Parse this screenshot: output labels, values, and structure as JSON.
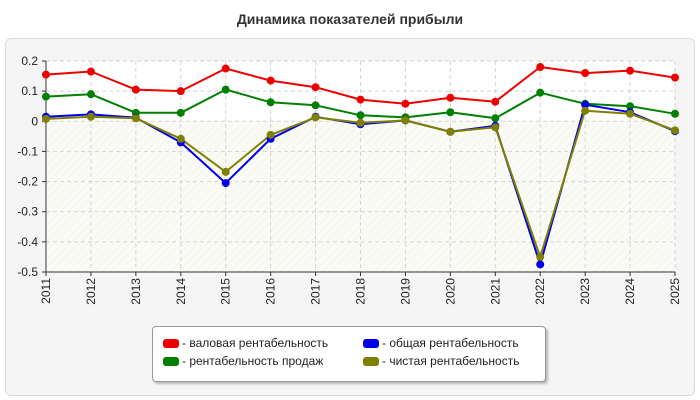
{
  "chart_data": {
    "type": "line",
    "title": "Динамика показателей прибыли",
    "xlabel": "",
    "ylabel": "",
    "x": [
      "2011",
      "2012",
      "2013",
      "2014",
      "2015",
      "2016",
      "2017",
      "2018",
      "2019",
      "2020",
      "2021",
      "2022",
      "2023",
      "2024",
      "2025"
    ],
    "ylim": [
      -0.5,
      0.2
    ],
    "yticks": [
      0.2,
      0.1,
      0,
      -0.1,
      -0.2,
      -0.3,
      -0.4,
      -0.5
    ],
    "ytick_labels": [
      "0.2",
      "0.1",
      "0",
      "-0.1",
      "-0.2",
      "-0.3",
      "-0.4",
      "-0.5"
    ],
    "grid": true,
    "legend_position": "bottom-center",
    "series": [
      {
        "name": "- валовая рентабельность",
        "color": "#ee0000",
        "values": [
          0.155,
          0.165,
          0.105,
          0.1,
          0.175,
          0.135,
          0.113,
          0.072,
          0.058,
          0.078,
          0.065,
          0.18,
          0.16,
          0.168,
          0.145
        ]
      },
      {
        "name": "- рентабельность продаж",
        "color": "#008000",
        "values": [
          0.082,
          0.09,
          0.028,
          0.028,
          0.105,
          0.063,
          0.053,
          0.02,
          0.013,
          0.03,
          0.01,
          0.095,
          0.058,
          0.05,
          0.025
        ]
      },
      {
        "name": "- общая рентабельность",
        "color": "#0000ee",
        "values": [
          0.015,
          0.023,
          0.012,
          -0.07,
          -0.205,
          -0.058,
          0.015,
          -0.01,
          0.003,
          -0.035,
          -0.015,
          -0.475,
          0.055,
          0.03,
          -0.033
        ]
      },
      {
        "name": "- чистая рентабельность",
        "color": "#808000",
        "values": [
          0.008,
          0.015,
          0.01,
          -0.058,
          -0.168,
          -0.045,
          0.013,
          -0.005,
          0.003,
          -0.035,
          -0.02,
          -0.45,
          0.035,
          0.025,
          -0.03
        ]
      }
    ]
  }
}
